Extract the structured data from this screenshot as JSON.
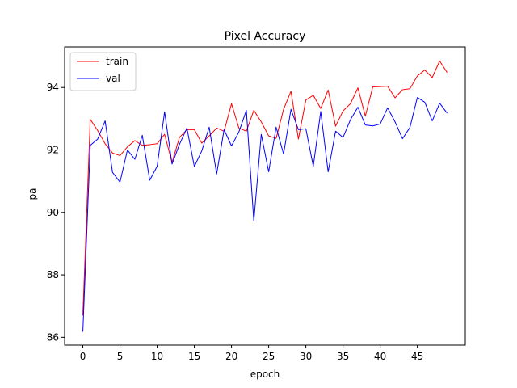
{
  "chart_data": {
    "type": "line",
    "title": "Pixel Accuracy",
    "xlabel": "epoch",
    "ylabel": "pa",
    "xlim": [
      -2.45,
      51.45
    ],
    "ylim": [
      85.75,
      95.3
    ],
    "xticks": [
      0,
      5,
      10,
      15,
      20,
      25,
      30,
      35,
      40,
      45
    ],
    "yticks": [
      86,
      88,
      90,
      92,
      94
    ],
    "grid": false,
    "legend_position": "top-left",
    "x": [
      0,
      1,
      2,
      3,
      4,
      5,
      6,
      7,
      8,
      9,
      10,
      11,
      12,
      13,
      14,
      15,
      16,
      17,
      18,
      19,
      20,
      21,
      22,
      23,
      24,
      25,
      26,
      27,
      28,
      29,
      30,
      31,
      32,
      33,
      34,
      35,
      36,
      37,
      38,
      39,
      40,
      41,
      42,
      43,
      44,
      45,
      46,
      47,
      48,
      49
    ],
    "series": [
      {
        "name": "train",
        "color": "#ff0000",
        "values": [
          86.7,
          92.98,
          92.62,
          92.2,
          91.9,
          91.82,
          92.1,
          92.3,
          92.15,
          92.17,
          92.2,
          92.5,
          91.6,
          92.4,
          92.65,
          92.65,
          92.22,
          92.45,
          92.7,
          92.6,
          93.48,
          92.7,
          92.6,
          93.27,
          92.9,
          92.45,
          92.37,
          93.3,
          93.88,
          92.35,
          93.6,
          93.75,
          93.33,
          93.92,
          92.76,
          93.25,
          93.48,
          93.99,
          93.08,
          94.02,
          94.03,
          94.04,
          93.67,
          93.93,
          93.96,
          94.37,
          94.56,
          94.32,
          94.85,
          94.48
        ]
      },
      {
        "name": "val",
        "color": "#0000ff",
        "values": [
          86.18,
          92.15,
          92.35,
          92.93,
          91.28,
          90.97,
          92.0,
          91.7,
          92.47,
          91.03,
          91.48,
          93.22,
          91.55,
          92.18,
          92.7,
          91.47,
          91.97,
          92.73,
          91.23,
          92.65,
          92.13,
          92.58,
          93.27,
          89.72,
          92.5,
          91.3,
          92.73,
          91.87,
          93.3,
          92.65,
          92.68,
          91.48,
          93.23,
          91.3,
          92.6,
          92.4,
          92.97,
          93.37,
          92.8,
          92.77,
          92.83,
          93.35,
          92.9,
          92.36,
          92.72,
          93.68,
          93.53,
          92.93,
          93.5,
          93.18
        ]
      }
    ]
  }
}
